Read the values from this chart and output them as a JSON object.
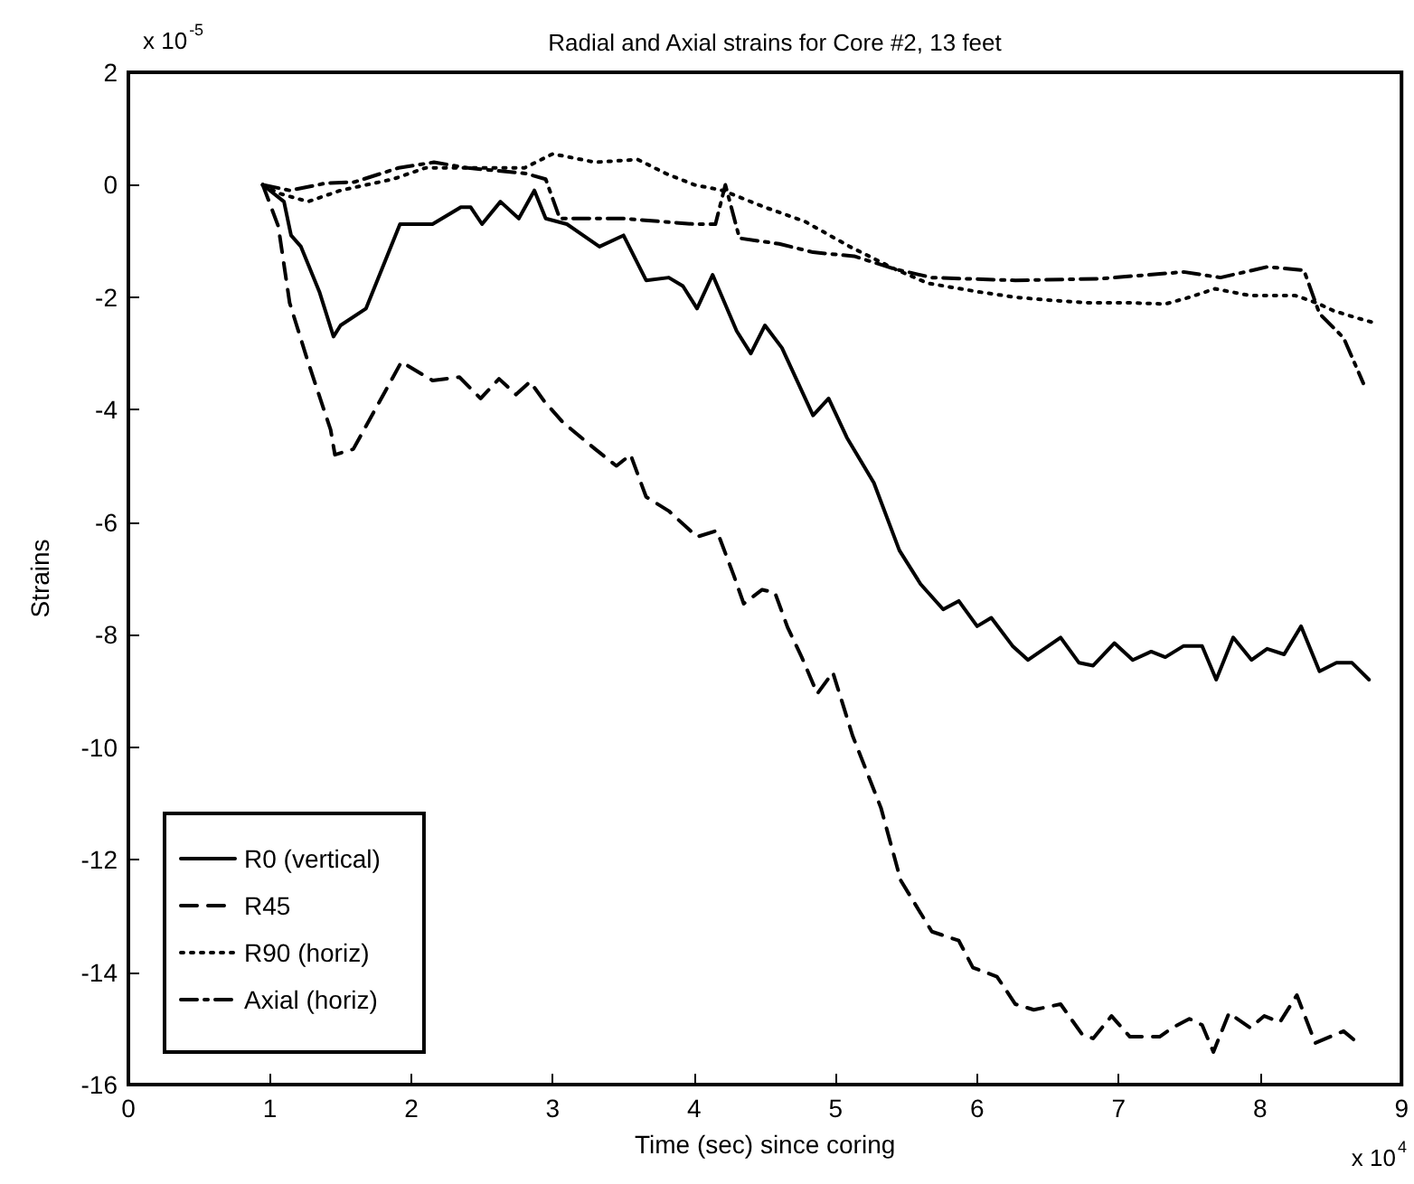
{
  "chart_data": {
    "type": "line",
    "title": "Radial and Axial strains for Core #2, 13 feet",
    "xlabel": "Time (sec) since coring",
    "ylabel": "Strains",
    "annotations": [
      "x 10$^{-5}$",
      "x 10$^{4}$"
    ],
    "xlim": [
      0,
      9
    ],
    "xticks": [
      0,
      1,
      2,
      3,
      4,
      5,
      6,
      7,
      8,
      9
    ],
    "ylim": [
      -16,
      2
    ],
    "yticks": [
      -16,
      -14,
      -12,
      -10,
      -8,
      -6,
      -4,
      -2,
      0,
      2
    ],
    "grid": false,
    "legend": "bottom left",
    "marker": "none",
    "series": [
      {
        "name": "R0 (vertical)",
        "color": "#000000",
        "line_style": "solid",
        "x": [
          0.95,
          1.1,
          1.15,
          1.22,
          1.35,
          1.45,
          1.5,
          1.68,
          1.92,
          2.15,
          2.35,
          2.42,
          2.5,
          2.63,
          2.76,
          2.87,
          2.95,
          3.1,
          3.33,
          3.5,
          3.66,
          3.82,
          3.92,
          4.02,
          4.13,
          4.3,
          4.4,
          4.5,
          4.62,
          4.84,
          4.95,
          5.08,
          5.27,
          5.45,
          5.6,
          5.76,
          5.87,
          6.0,
          6.1,
          6.25,
          6.36,
          6.59,
          6.72,
          6.82,
          6.97,
          7.1,
          7.23,
          7.33,
          7.46,
          7.59,
          7.69,
          7.81,
          7.94,
          8.05,
          8.17,
          8.29,
          8.42,
          8.54,
          8.65,
          8.77
        ],
        "values": [
          0,
          -0.3,
          -0.9,
          -1.1,
          -1.9,
          -2.7,
          -2.5,
          -2.2,
          -0.7,
          -0.7,
          -0.4,
          -0.4,
          -0.7,
          -0.3,
          -0.6,
          -0.1,
          -0.6,
          -0.7,
          -1.1,
          -0.9,
          -1.7,
          -1.65,
          -1.8,
          -2.2,
          -1.6,
          -2.6,
          -3.0,
          -2.5,
          -2.9,
          -4.1,
          -3.8,
          -4.5,
          -5.3,
          -6.5,
          -7.1,
          -7.55,
          -7.4,
          -7.85,
          -7.7,
          -8.2,
          -8.45,
          -8.05,
          -8.5,
          -8.55,
          -8.15,
          -8.45,
          -8.3,
          -8.4,
          -8.2,
          -8.2,
          -8.8,
          -8.05,
          -8.45,
          -8.25,
          -8.35,
          -7.85,
          -8.65,
          -8.5,
          -8.5,
          -8.8
        ]
      },
      {
        "name": "R45",
        "color": "#000000",
        "line_style": "dashed",
        "x": [
          0.95,
          1.06,
          1.14,
          1.27,
          1.43,
          1.46,
          1.59,
          1.93,
          2.15,
          2.34,
          2.49,
          2.62,
          2.74,
          2.84,
          2.94,
          3.07,
          3.3,
          3.45,
          3.55,
          3.66,
          3.82,
          4.02,
          4.16,
          4.28,
          4.35,
          4.48,
          4.57,
          4.66,
          4.76,
          4.87,
          4.98,
          5.12,
          5.32,
          5.46,
          5.68,
          5.87,
          5.97,
          6.14,
          6.27,
          6.4,
          6.59,
          6.74,
          6.82,
          6.95,
          7.08,
          7.29,
          7.38,
          7.5,
          7.59,
          7.67,
          7.78,
          7.93,
          8.03,
          8.14,
          8.26,
          8.39,
          8.59,
          8.69
        ],
        "values": [
          0,
          -0.74,
          -2.1,
          -3.15,
          -4.36,
          -4.8,
          -4.7,
          -3.15,
          -3.48,
          -3.42,
          -3.8,
          -3.45,
          -3.73,
          -3.5,
          -3.85,
          -4.22,
          -4.7,
          -5.0,
          -4.8,
          -5.55,
          -5.8,
          -6.26,
          -6.15,
          -6.95,
          -7.45,
          -7.2,
          -7.25,
          -7.87,
          -8.4,
          -9.05,
          -8.67,
          -9.8,
          -11.08,
          -12.37,
          -13.28,
          -13.44,
          -13.92,
          -14.08,
          -14.57,
          -14.67,
          -14.57,
          -15.1,
          -15.18,
          -14.78,
          -15.15,
          -15.15,
          -14.99,
          -14.83,
          -14.94,
          -15.42,
          -14.73,
          -14.99,
          -14.78,
          -14.89,
          -14.41,
          -15.26,
          -15.05,
          -15.26
        ]
      },
      {
        "name": "R90 (horiz)",
        "color": "#000000",
        "line_style": "dotted",
        "x": [
          0.95,
          1.06,
          1.27,
          1.5,
          1.87,
          2.1,
          2.5,
          2.8,
          3.0,
          3.3,
          3.6,
          3.8,
          4.0,
          4.2,
          4.5,
          4.78,
          5.1,
          5.42,
          5.65,
          6.0,
          6.27,
          6.5,
          6.8,
          7.1,
          7.33,
          7.5,
          7.68,
          7.93,
          8.25,
          8.4,
          8.52,
          8.66,
          8.8
        ],
        "values": [
          0,
          -0.15,
          -0.3,
          -0.1,
          0.1,
          0.3,
          0.3,
          0.3,
          0.55,
          0.4,
          0.45,
          0.2,
          0.0,
          -0.1,
          -0.4,
          -0.65,
          -1.1,
          -1.5,
          -1.75,
          -1.9,
          -2.0,
          -2.05,
          -2.1,
          -2.1,
          -2.12,
          -2.0,
          -1.85,
          -1.97,
          -1.97,
          -2.1,
          -2.24,
          -2.35,
          -2.45
        ]
      },
      {
        "name": "Axial (horiz)",
        "color": "#000000",
        "line_style": "dashdot",
        "x": [
          0.95,
          1.14,
          1.4,
          1.6,
          1.91,
          2.16,
          2.4,
          2.81,
          2.95,
          3.05,
          3.5,
          4.0,
          4.15,
          4.22,
          4.32,
          4.6,
          4.84,
          5.13,
          5.42,
          5.68,
          6.27,
          6.87,
          7.46,
          7.72,
          8.05,
          8.31,
          8.42,
          8.59,
          8.73
        ],
        "values": [
          0,
          -0.1,
          0.03,
          0.05,
          0.3,
          0.4,
          0.3,
          0.2,
          0.1,
          -0.6,
          -0.6,
          -0.7,
          -0.7,
          0.0,
          -0.95,
          -1.05,
          -1.2,
          -1.27,
          -1.5,
          -1.65,
          -1.7,
          -1.67,
          -1.55,
          -1.65,
          -1.46,
          -1.52,
          -2.29,
          -2.72,
          -3.53
        ]
      }
    ]
  }
}
